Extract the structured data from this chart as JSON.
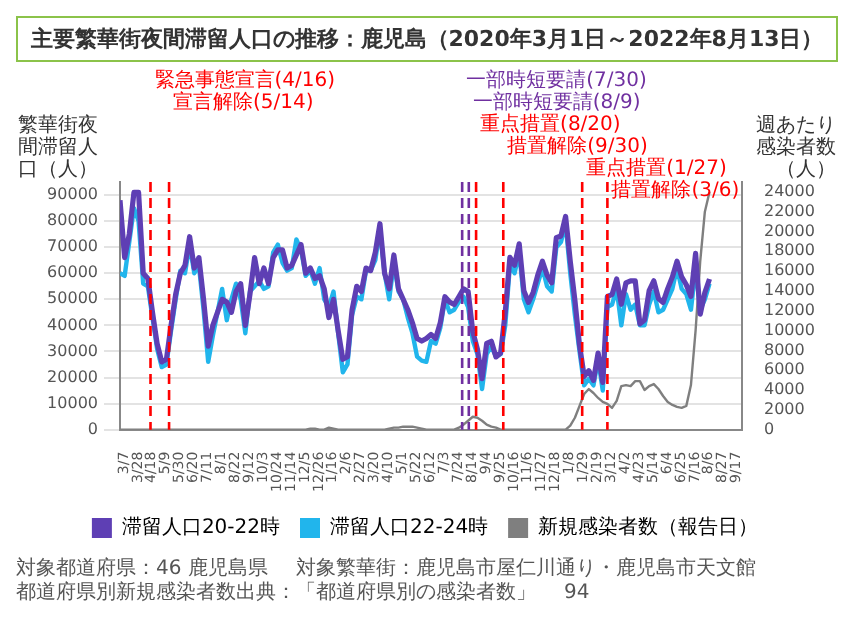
{
  "chart_data": {
    "type": "line",
    "title": "主要繁華街夜間滞留人口の推移：鹿児島（2020年3月1日～2022年8月13日）",
    "ylabel": "繁華街夜間滞留人口（人）",
    "y2label": "週あたり感染者数（人）",
    "x": [
      "2020-03-01",
      "2020-03-08",
      "2020-03-15",
      "2020-03-22",
      "2020-03-29",
      "2020-04-05",
      "2020-04-12",
      "2020-04-19",
      "2020-04-26",
      "2020-05-03",
      "2020-05-10",
      "2020-05-17",
      "2020-05-24",
      "2020-05-31",
      "2020-06-07",
      "2020-06-14",
      "2020-06-21",
      "2020-06-28",
      "2020-07-05",
      "2020-07-12",
      "2020-07-19",
      "2020-07-26",
      "2020-08-02",
      "2020-08-09",
      "2020-08-16",
      "2020-08-23",
      "2020-08-30",
      "2020-09-06",
      "2020-09-13",
      "2020-09-20",
      "2020-09-27",
      "2020-10-04",
      "2020-10-11",
      "2020-10-18",
      "2020-10-25",
      "2020-11-01",
      "2020-11-08",
      "2020-11-15",
      "2020-11-22",
      "2020-11-29",
      "2020-12-06",
      "2020-12-13",
      "2020-12-20",
      "2020-12-27",
      "2021-01-03",
      "2021-01-10",
      "2021-01-17",
      "2021-01-24",
      "2021-01-31",
      "2021-02-07",
      "2021-02-14",
      "2021-02-21",
      "2021-02-28",
      "2021-03-07",
      "2021-03-14",
      "2021-03-21",
      "2021-03-28",
      "2021-04-04",
      "2021-04-11",
      "2021-04-18",
      "2021-04-25",
      "2021-05-02",
      "2021-05-09",
      "2021-05-16",
      "2021-05-23",
      "2021-05-30",
      "2021-06-06",
      "2021-06-13",
      "2021-06-20",
      "2021-06-27",
      "2021-07-04",
      "2021-07-11",
      "2021-07-18",
      "2021-07-25",
      "2021-08-01",
      "2021-08-08",
      "2021-08-15",
      "2021-08-22",
      "2021-08-29",
      "2021-09-05",
      "2021-09-12",
      "2021-09-19",
      "2021-09-26",
      "2021-10-03",
      "2021-10-10",
      "2021-10-17",
      "2021-10-24",
      "2021-10-31",
      "2021-11-07",
      "2021-11-14",
      "2021-11-21",
      "2021-11-28",
      "2021-12-05",
      "2021-12-12",
      "2021-12-19",
      "2021-12-26",
      "2022-01-02",
      "2022-01-09",
      "2022-01-16",
      "2022-01-23",
      "2022-01-30",
      "2022-02-06",
      "2022-02-13",
      "2022-02-20",
      "2022-02-27",
      "2022-03-06",
      "2022-03-13",
      "2022-03-20",
      "2022-03-27",
      "2022-04-03",
      "2022-04-10",
      "2022-04-17",
      "2022-04-24",
      "2022-05-01",
      "2022-05-08",
      "2022-05-15",
      "2022-05-22",
      "2022-05-29",
      "2022-06-05",
      "2022-06-12",
      "2022-06-19",
      "2022-06-26",
      "2022-07-03",
      "2022-07-10",
      "2022-07-17",
      "2022-07-24",
      "2022-07-31",
      "2022-08-07"
    ],
    "xlim": [
      "2020-03-01",
      "2022-09-25"
    ],
    "xticks": [
      {
        "value": "2020-03-07",
        "label": "3/7"
      },
      {
        "value": "2020-03-28",
        "label": "3/28"
      },
      {
        "value": "2020-04-18",
        "label": "4/18"
      },
      {
        "value": "2020-05-09",
        "label": "5/9"
      },
      {
        "value": "2020-05-30",
        "label": "5/30"
      },
      {
        "value": "2020-06-20",
        "label": "6/20"
      },
      {
        "value": "2020-07-11",
        "label": "7/11"
      },
      {
        "value": "2020-08-01",
        "label": "8/1"
      },
      {
        "value": "2020-08-22",
        "label": "8/22"
      },
      {
        "value": "2020-09-12",
        "label": "9/12"
      },
      {
        "value": "2020-10-03",
        "label": "10/3"
      },
      {
        "value": "2020-10-24",
        "label": "10/24"
      },
      {
        "value": "2020-11-14",
        "label": "11/14"
      },
      {
        "value": "2020-12-05",
        "label": "12/5"
      },
      {
        "value": "2020-12-26",
        "label": "12/26"
      },
      {
        "value": "2021-01-16",
        "label": "1/16"
      },
      {
        "value": "2021-02-06",
        "label": "2/6"
      },
      {
        "value": "2021-02-27",
        "label": "2/27"
      },
      {
        "value": "2021-03-20",
        "label": "3/20"
      },
      {
        "value": "2021-04-10",
        "label": "4/10"
      },
      {
        "value": "2021-05-01",
        "label": "5/1"
      },
      {
        "value": "2021-05-22",
        "label": "5/22"
      },
      {
        "value": "2021-06-12",
        "label": "6/12"
      },
      {
        "value": "2021-07-03",
        "label": "7/3"
      },
      {
        "value": "2021-07-24",
        "label": "7/24"
      },
      {
        "value": "2021-08-14",
        "label": "8/14"
      },
      {
        "value": "2021-09-04",
        "label": "9/4"
      },
      {
        "value": "2021-09-25",
        "label": "9/25"
      },
      {
        "value": "2021-10-16",
        "label": "10/16"
      },
      {
        "value": "2021-11-06",
        "label": "11/6"
      },
      {
        "value": "2021-11-27",
        "label": "11/27"
      },
      {
        "value": "2021-12-18",
        "label": "12/18"
      },
      {
        "value": "2022-01-08",
        "label": "1/8"
      },
      {
        "value": "2022-01-29",
        "label": "1/29"
      },
      {
        "value": "2022-02-19",
        "label": "2/19"
      },
      {
        "value": "2022-03-12",
        "label": "3/12"
      },
      {
        "value": "2022-04-02",
        "label": "4/2"
      },
      {
        "value": "2022-04-23",
        "label": "4/23"
      },
      {
        "value": "2022-05-14",
        "label": "5/14"
      },
      {
        "value": "2022-06-04",
        "label": "6/4"
      },
      {
        "value": "2022-06-25",
        "label": "6/25"
      },
      {
        "value": "2022-07-16",
        "label": "7/16"
      },
      {
        "value": "2022-08-06",
        "label": "8/6"
      },
      {
        "value": "2022-08-27",
        "label": "8/27"
      },
      {
        "value": "2022-09-17",
        "label": "9/17"
      }
    ],
    "ylim": [
      0,
      95000
    ],
    "yticks": [
      0,
      10000,
      20000,
      30000,
      40000,
      50000,
      60000,
      70000,
      80000,
      90000
    ],
    "y2lim": [
      0,
      25000
    ],
    "y2ticks": [
      0,
      2000,
      4000,
      6000,
      8000,
      10000,
      12000,
      14000,
      16000,
      18000,
      20000,
      22000,
      24000
    ],
    "series": [
      {
        "name": "滞留人口20-22時",
        "color": "#5e3fb4",
        "values": [
          88000,
          66000,
          75000,
          91000,
          91000,
          60000,
          58000,
          45000,
          33000,
          26000,
          27000,
          40000,
          52000,
          60000,
          63000,
          74000,
          62000,
          66000,
          50000,
          32000,
          40000,
          45000,
          50000,
          49000,
          45000,
          53000,
          56000,
          40000,
          52000,
          66000,
          56000,
          62000,
          56000,
          66000,
          69000,
          69000,
          62000,
          63000,
          67000,
          71000,
          60000,
          62000,
          58000,
          59000,
          54000,
          43000,
          50000,
          38000,
          27000,
          28000,
          46000,
          55000,
          53000,
          62000,
          61000,
          68000,
          79000,
          60000,
          54000,
          67000,
          54000,
          50000,
          46000,
          41000,
          35000,
          34000,
          35000,
          36500,
          35000,
          41000,
          51000,
          49000,
          48000,
          51000,
          54000,
          53000,
          37600,
          30900,
          19600,
          33100,
          33900,
          27900,
          29400,
          45100,
          66100,
          63100,
          71300,
          53300,
          48800,
          52600,
          59300,
          64600,
          59300,
          56300,
          73600,
          74300,
          81800,
          64600,
          49600,
          32400,
          20400,
          22600,
          18900,
          29400,
          18100,
          51100,
          51800,
          57800,
          48100,
          56300,
          57100,
          57100,
          40600,
          42100,
          53300,
          57100,
          50300,
          48800,
          54100,
          58600,
          64600,
          58600,
          55600,
          51100,
          67600,
          44300,
          52600,
          57800
        ]
      },
      {
        "name": "滞留人口22-24時",
        "color": "#21b5ec",
        "values": [
          60000,
          59000,
          72000,
          85000,
          80000,
          56000,
          55000,
          43000,
          31000,
          24000,
          25000,
          38000,
          50000,
          61000,
          60000,
          71000,
          60000,
          63000,
          46000,
          26000,
          36000,
          45000,
          54000,
          42000,
          50000,
          56000,
          50000,
          37000,
          53000,
          55000,
          57000,
          54000,
          55000,
          68000,
          71000,
          64000,
          61000,
          62000,
          73000,
          69000,
          59000,
          61000,
          56000,
          62000,
          50000,
          47000,
          53000,
          37000,
          22000,
          25000,
          44000,
          51000,
          50000,
          61000,
          61000,
          65000,
          77000,
          60000,
          50000,
          64000,
          53000,
          50000,
          43000,
          37000,
          28000,
          26500,
          26000,
          34000,
          33000,
          39000,
          50000,
          45000,
          46000,
          49000,
          51000,
          47000,
          34000,
          29000,
          15600,
          29000,
          32000,
          28000,
          29000,
          40000,
          63000,
          60000,
          68000,
          50000,
          45000,
          50000,
          56000,
          62000,
          55000,
          53000,
          70000,
          72000,
          79000,
          60000,
          44000,
          30000,
          17000,
          19500,
          17000,
          27000,
          15000,
          47000,
          48000,
          54000,
          40000,
          52000,
          46000,
          48000,
          40000,
          40000,
          48000,
          53000,
          45000,
          46000,
          50000,
          54000,
          62000,
          54000,
          52000,
          46000,
          62000,
          46000,
          50000,
          56000
        ]
      },
      {
        "name": "新規感染者数（報告日）",
        "color": "#7f7f7f",
        "axis": "y2",
        "values": [
          0,
          0,
          0,
          0,
          0,
          0,
          0,
          0,
          0,
          0,
          0,
          0,
          0,
          0,
          0,
          0,
          0,
          0,
          0,
          0,
          0,
          0,
          0,
          0,
          0,
          0,
          0,
          0,
          0,
          0,
          0,
          0,
          0,
          0,
          0,
          0,
          0,
          0,
          0,
          0,
          0,
          100,
          100,
          0,
          0,
          200,
          100,
          0,
          0,
          0,
          0,
          0,
          0,
          0,
          0,
          0,
          0,
          0,
          100,
          200,
          200,
          300,
          300,
          300,
          200,
          100,
          0,
          0,
          0,
          0,
          0,
          0,
          0,
          200,
          500,
          900,
          1300,
          1200,
          900,
          500,
          300,
          200,
          0,
          0,
          0,
          0,
          0,
          0,
          0,
          0,
          0,
          0,
          0,
          0,
          0,
          0,
          0,
          400,
          1200,
          2400,
          3600,
          4100,
          3700,
          3200,
          2800,
          2600,
          2200,
          2900,
          4400,
          4500,
          4400,
          4900,
          4900,
          4000,
          4400,
          4600,
          4100,
          3400,
          2800,
          2500,
          2300,
          2200,
          2400,
          4500,
          10000,
          17000,
          22000,
          24000
        ]
      }
    ],
    "ref_lines": [
      {
        "axis": "x",
        "value": "2020-04-16",
        "label": "緊急事態宣言(4/16)",
        "color": "#ff0000",
        "line_style": "dashed"
      },
      {
        "axis": "x",
        "value": "2020-05-14",
        "label": "宣言解除(5/14)",
        "color": "#ff0000",
        "line_style": "dashed"
      },
      {
        "axis": "x",
        "value": "2021-07-30",
        "label": "一部時短要請(7/30)",
        "color": "#7030a0",
        "line_style": "dashed"
      },
      {
        "axis": "x",
        "value": "2021-08-09",
        "label": "一部時短要請(8/9)",
        "color": "#7030a0",
        "line_style": "dashed"
      },
      {
        "axis": "x",
        "value": "2021-08-20",
        "label": "重点措置(8/20)",
        "color": "#ff0000",
        "line_style": "dashed"
      },
      {
        "axis": "x",
        "value": "2021-09-30",
        "label": "措置解除(9/30)",
        "color": "#ff0000",
        "line_style": "dashed"
      },
      {
        "axis": "x",
        "value": "2022-01-27",
        "label": "重点措置(1/27)",
        "color": "#ff0000",
        "line_style": "dashed"
      },
      {
        "axis": "x",
        "value": "2022-03-06",
        "label": "措置解除(3/6)",
        "color": "#ff0000",
        "line_style": "dashed"
      }
    ],
    "annotations": [
      "対象都道府県：46 鹿児島県",
      "対象繁華街：鹿児島市屋仁川通り・鹿児島市天文館",
      "都道府県別新規感染者数出典：「都道府県別の感染者数」",
      "94"
    ],
    "legend": "bottom",
    "grid": "y",
    "marker": "none",
    "line_style": "solid"
  }
}
